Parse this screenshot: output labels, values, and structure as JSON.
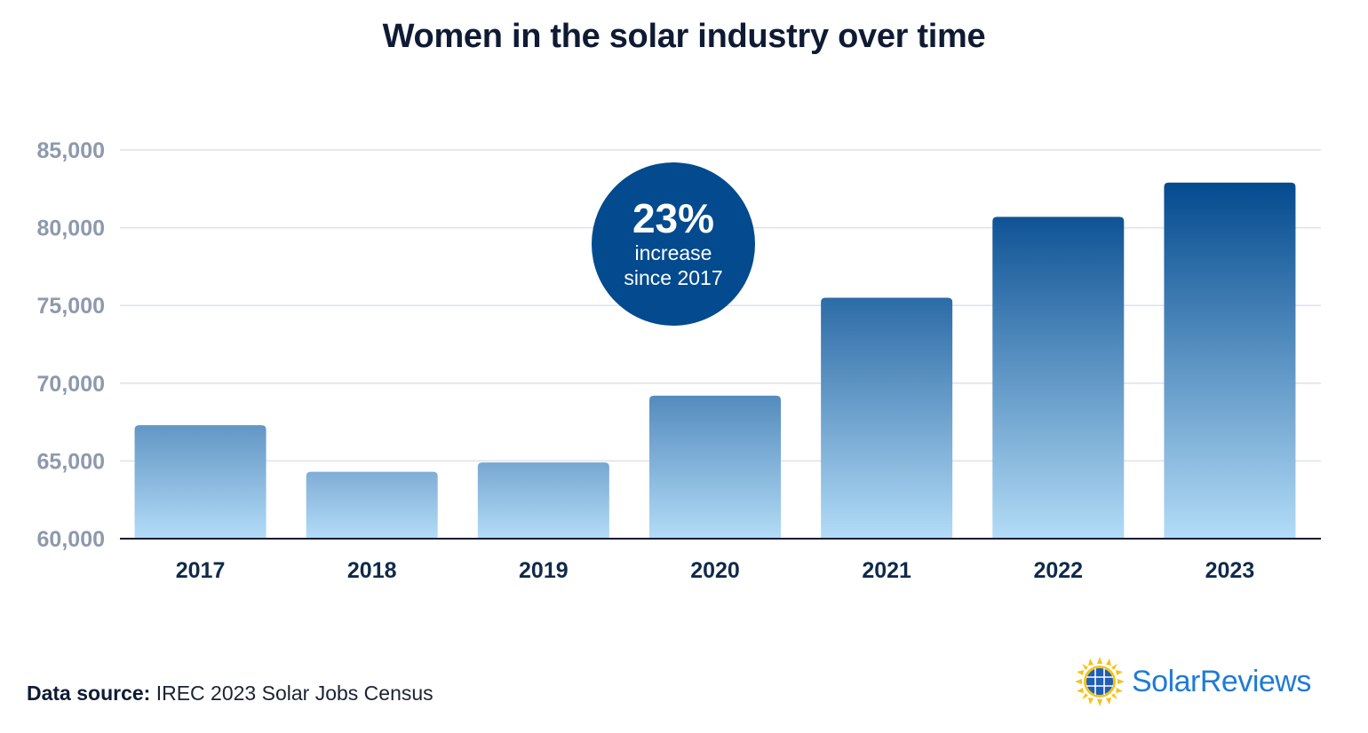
{
  "chart_data": {
    "type": "bar",
    "title": "Women in the solar industry over time",
    "categories": [
      "2017",
      "2018",
      "2019",
      "2020",
      "2021",
      "2022",
      "2023"
    ],
    "values": [
      67300,
      64300,
      64900,
      69200,
      75500,
      80700,
      82900
    ],
    "ylim": [
      60000,
      85000
    ],
    "yticks": [
      "60,000",
      "65,000",
      "70,000",
      "75,000",
      "80,000",
      "85,000"
    ],
    "ytick_values": [
      60000,
      65000,
      70000,
      75000,
      80000,
      85000
    ],
    "xlabel": "",
    "ylabel": "",
    "grid": true,
    "colors": {
      "bar_top_light": "#7fadd6",
      "bar_top_dark": "#034a8e",
      "bar_bottom": "#b3dcf7",
      "grid": "#dde1ea",
      "axis": "#0f1b33",
      "tick_label": "#8e99ad",
      "category_label": "#0f2a4a"
    },
    "annotation": {
      "big": "23%",
      "line1": "increase",
      "line2": "since 2017",
      "color": "#034a8e"
    }
  },
  "source": {
    "label": "Data source:",
    "text": "IREC 2023 Solar Jobs Census"
  },
  "logo": {
    "text": "SolarReviews",
    "icon": "sun-solar-panel-icon",
    "color": "#1f7bd6"
  }
}
